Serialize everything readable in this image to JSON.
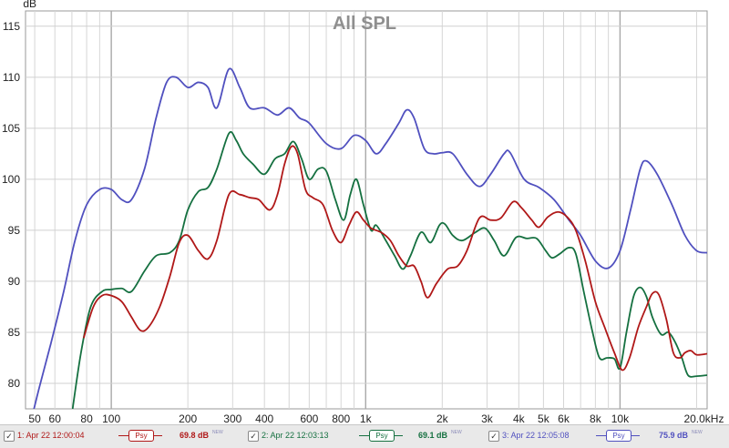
{
  "chart_data": {
    "type": "line",
    "title": "All SPL",
    "ylabel": "dB",
    "x_scale": "log",
    "xlim": [
      46,
      22000
    ],
    "ylim": [
      77.5,
      116.5
    ],
    "y_ticks": [
      80,
      85,
      90,
      95,
      100,
      105,
      110,
      115
    ],
    "x_ticks": [
      {
        "v": 50,
        "label": "50"
      },
      {
        "v": 60,
        "label": "60"
      },
      {
        "v": 80,
        "label": "80"
      },
      {
        "v": 100,
        "label": "100"
      },
      {
        "v": 200,
        "label": "200"
      },
      {
        "v": 300,
        "label": "300"
      },
      {
        "v": 400,
        "label": "400"
      },
      {
        "v": 600,
        "label": "600"
      },
      {
        "v": 800,
        "label": "800"
      },
      {
        "v": 1000,
        "label": "1k"
      },
      {
        "v": 2000,
        "label": "2k"
      },
      {
        "v": 3000,
        "label": "3k"
      },
      {
        "v": 4000,
        "label": "4k"
      },
      {
        "v": 5000,
        "label": "5k"
      },
      {
        "v": 6000,
        "label": "6k"
      },
      {
        "v": 8000,
        "label": "8k"
      },
      {
        "v": 10000,
        "label": "10k"
      },
      {
        "v": 20000,
        "label": "20.0kHz"
      }
    ],
    "grid": true,
    "series": [
      {
        "name": "3: Apr 22 12:05:08",
        "color": "#5050bf",
        "points": [
          [
            48,
            76
          ],
          [
            52,
            79.5
          ],
          [
            58,
            84
          ],
          [
            65,
            89
          ],
          [
            72,
            94
          ],
          [
            80,
            97.5
          ],
          [
            90,
            99
          ],
          [
            100,
            99
          ],
          [
            110,
            98
          ],
          [
            120,
            98
          ],
          [
            135,
            101
          ],
          [
            150,
            106
          ],
          [
            165,
            109.5
          ],
          [
            180,
            110
          ],
          [
            200,
            109
          ],
          [
            220,
            109.5
          ],
          [
            240,
            109
          ],
          [
            260,
            107
          ],
          [
            290,
            110.8
          ],
          [
            320,
            109
          ],
          [
            350,
            107
          ],
          [
            400,
            107
          ],
          [
            450,
            106.3
          ],
          [
            500,
            107
          ],
          [
            550,
            106
          ],
          [
            600,
            105.5
          ],
          [
            700,
            103.5
          ],
          [
            800,
            103
          ],
          [
            900,
            104.3
          ],
          [
            1000,
            103.8
          ],
          [
            1100,
            102.5
          ],
          [
            1200,
            103.5
          ],
          [
            1350,
            105.5
          ],
          [
            1450,
            106.8
          ],
          [
            1550,
            106
          ],
          [
            1700,
            103
          ],
          [
            1850,
            102.5
          ],
          [
            2000,
            102.6
          ],
          [
            2200,
            102.5
          ],
          [
            2500,
            100.5
          ],
          [
            2800,
            99.3
          ],
          [
            3100,
            100.5
          ],
          [
            3500,
            102.5
          ],
          [
            3700,
            102.6
          ],
          [
            4200,
            100
          ],
          [
            4800,
            99.2
          ],
          [
            5500,
            98
          ],
          [
            6300,
            96
          ],
          [
            7000,
            94.5
          ],
          [
            8000,
            92
          ],
          [
            9000,
            91.3
          ],
          [
            10000,
            93
          ],
          [
            11000,
            97
          ],
          [
            12000,
            101
          ],
          [
            12700,
            101.8
          ],
          [
            14000,
            100.5
          ],
          [
            16000,
            97.5
          ],
          [
            18000,
            94.5
          ],
          [
            20000,
            93
          ],
          [
            22000,
            92.8
          ]
        ]
      },
      {
        "name": "2: Apr 22 12:03:13",
        "color": "#157040",
        "points": [
          [
            70,
            77
          ],
          [
            76,
            83
          ],
          [
            83,
            87.5
          ],
          [
            92,
            89
          ],
          [
            100,
            89.2
          ],
          [
            110,
            89.3
          ],
          [
            120,
            89
          ],
          [
            135,
            91
          ],
          [
            150,
            92.5
          ],
          [
            170,
            92.8
          ],
          [
            185,
            94
          ],
          [
            200,
            97
          ],
          [
            220,
            98.8
          ],
          [
            240,
            99.2
          ],
          [
            260,
            101
          ],
          [
            290,
            104.5
          ],
          [
            310,
            103.8
          ],
          [
            330,
            102.5
          ],
          [
            360,
            101.5
          ],
          [
            400,
            100.5
          ],
          [
            440,
            102
          ],
          [
            480,
            102.5
          ],
          [
            520,
            103.7
          ],
          [
            560,
            102
          ],
          [
            600,
            100
          ],
          [
            650,
            101
          ],
          [
            700,
            100.8
          ],
          [
            760,
            98
          ],
          [
            820,
            96
          ],
          [
            870,
            98.5
          ],
          [
            920,
            100
          ],
          [
            980,
            97.5
          ],
          [
            1050,
            95
          ],
          [
            1100,
            95.5
          ],
          [
            1200,
            94
          ],
          [
            1300,
            92.5
          ],
          [
            1400,
            91.2
          ],
          [
            1500,
            92.5
          ],
          [
            1650,
            94.8
          ],
          [
            1800,
            93.8
          ],
          [
            1950,
            95.5
          ],
          [
            2050,
            95.6
          ],
          [
            2200,
            94.5
          ],
          [
            2400,
            94
          ],
          [
            2700,
            94.8
          ],
          [
            2950,
            95.2
          ],
          [
            3200,
            94
          ],
          [
            3500,
            92.5
          ],
          [
            3900,
            94.3
          ],
          [
            4300,
            94.2
          ],
          [
            4700,
            94.2
          ],
          [
            5100,
            93
          ],
          [
            5400,
            92.3
          ],
          [
            5800,
            92.7
          ],
          [
            6300,
            93.3
          ],
          [
            6700,
            92.7
          ],
          [
            7200,
            89
          ],
          [
            7800,
            85
          ],
          [
            8300,
            82.5
          ],
          [
            8900,
            82.5
          ],
          [
            9500,
            82.4
          ],
          [
            10000,
            81.5
          ],
          [
            10600,
            85
          ],
          [
            11300,
            88.5
          ],
          [
            12000,
            89.4
          ],
          [
            12700,
            88.5
          ],
          [
            13400,
            86.5
          ],
          [
            14500,
            84.8
          ],
          [
            15500,
            85
          ],
          [
            16500,
            84
          ],
          [
            17500,
            82.5
          ],
          [
            18500,
            80.8
          ],
          [
            20000,
            80.7
          ],
          [
            22000,
            80.8
          ]
        ]
      },
      {
        "name": "1: Apr 22 12:00:04",
        "color": "#b01818",
        "points": [
          [
            78,
            84.5
          ],
          [
            85,
            87.5
          ],
          [
            92,
            88.6
          ],
          [
            100,
            88.6
          ],
          [
            110,
            88
          ],
          [
            120,
            86.5
          ],
          [
            130,
            85.2
          ],
          [
            140,
            85.5
          ],
          [
            155,
            87.5
          ],
          [
            170,
            90.5
          ],
          [
            185,
            93.8
          ],
          [
            200,
            94.5
          ],
          [
            220,
            93
          ],
          [
            240,
            92.2
          ],
          [
            260,
            94
          ],
          [
            290,
            98.5
          ],
          [
            320,
            98.5
          ],
          [
            350,
            98.2
          ],
          [
            380,
            98
          ],
          [
            420,
            97
          ],
          [
            450,
            98.5
          ],
          [
            480,
            101.5
          ],
          [
            510,
            103.2
          ],
          [
            540,
            102.5
          ],
          [
            580,
            99
          ],
          [
            620,
            98.2
          ],
          [
            680,
            97.5
          ],
          [
            740,
            95
          ],
          [
            800,
            93.8
          ],
          [
            860,
            95.5
          ],
          [
            920,
            96.8
          ],
          [
            980,
            96
          ],
          [
            1050,
            95.2
          ],
          [
            1150,
            94.8
          ],
          [
            1250,
            94
          ],
          [
            1350,
            92.5
          ],
          [
            1450,
            91.5
          ],
          [
            1550,
            91.5
          ],
          [
            1650,
            90
          ],
          [
            1750,
            88.4
          ],
          [
            1900,
            89.8
          ],
          [
            2100,
            91.2
          ],
          [
            2300,
            91.5
          ],
          [
            2500,
            93
          ],
          [
            2800,
            96.2
          ],
          [
            3100,
            96
          ],
          [
            3400,
            96.2
          ],
          [
            3800,
            97.8
          ],
          [
            4100,
            97.2
          ],
          [
            4500,
            96
          ],
          [
            4800,
            95.3
          ],
          [
            5200,
            96.3
          ],
          [
            5700,
            96.8
          ],
          [
            6200,
            96.3
          ],
          [
            6700,
            95
          ],
          [
            7300,
            92
          ],
          [
            8000,
            88
          ],
          [
            8700,
            85.5
          ],
          [
            9500,
            83
          ],
          [
            10200,
            81.3
          ],
          [
            10900,
            82.5
          ],
          [
            11800,
            85.5
          ],
          [
            12700,
            87.5
          ],
          [
            13400,
            88.8
          ],
          [
            14200,
            88.7
          ],
          [
            15200,
            86.3
          ],
          [
            16200,
            83
          ],
          [
            17200,
            82.5
          ],
          [
            18000,
            83
          ],
          [
            19000,
            83.2
          ],
          [
            20000,
            82.8
          ],
          [
            22000,
            82.9
          ]
        ]
      }
    ]
  },
  "legend": [
    {
      "label": "1: Apr 22 12:00:04",
      "check": "✓",
      "psy": "Psy",
      "db": "69.8 dB",
      "new": "NEW",
      "color": "#b01818"
    },
    {
      "label": "2: Apr 22 12:03:13",
      "check": "✓",
      "psy": "Psy",
      "db": "69.1 dB",
      "new": "NEW",
      "color": "#157040"
    },
    {
      "label": "3: Apr 22 12:05:08",
      "check": "✓",
      "psy": "Psy",
      "db": "75.9 dB",
      "new": "NEW",
      "color": "#5050bf"
    }
  ]
}
